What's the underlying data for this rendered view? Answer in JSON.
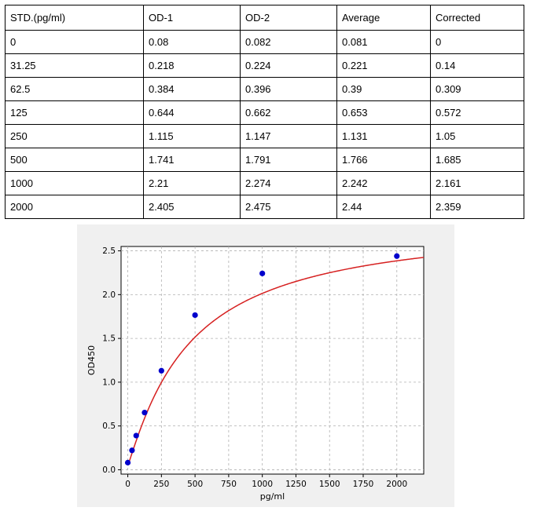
{
  "table": {
    "headers": [
      "STD.(pg/ml)",
      "OD-1",
      "OD-2",
      "Average",
      "Corrected"
    ],
    "rows": [
      [
        "0",
        "0.08",
        "0.082",
        "0.081",
        "0"
      ],
      [
        "31.25",
        "0.218",
        "0.224",
        "0.221",
        "0.14"
      ],
      [
        "62.5",
        "0.384",
        "0.396",
        "0.39",
        "0.309"
      ],
      [
        "125",
        "0.644",
        "0.662",
        "0.653",
        "0.572"
      ],
      [
        "250",
        "1.115",
        "1.147",
        "1.131",
        "1.05"
      ],
      [
        "500",
        "1.741",
        "1.791",
        "1.766",
        "1.685"
      ],
      [
        "1000",
        "2.21",
        "2.274",
        "2.242",
        "2.161"
      ],
      [
        "2000",
        "2.405",
        "2.475",
        "2.44",
        "2.359"
      ]
    ]
  },
  "chart_data": {
    "type": "scatter",
    "title": "",
    "xlabel": "pg/ml",
    "ylabel": "OD450",
    "xlim": [
      -50,
      2200
    ],
    "ylim": [
      -0.05,
      2.55
    ],
    "xticks": [
      0,
      250,
      500,
      750,
      1000,
      1250,
      1500,
      1750,
      2000
    ],
    "yticks": [
      0.0,
      0.5,
      1.0,
      1.5,
      2.0,
      2.5
    ],
    "xtick_labels": [
      "0",
      "250",
      "500",
      "750",
      "1000",
      "1250",
      "1500",
      "1750",
      "2000"
    ],
    "ytick_labels": [
      "0.0",
      "0.5",
      "1.0",
      "1.5",
      "2.0",
      "2.5"
    ],
    "grid": true,
    "points": {
      "x": [
        0,
        31.25,
        62.5,
        125,
        250,
        500,
        1000,
        2000
      ],
      "y": [
        0.081,
        0.221,
        0.39,
        0.653,
        1.131,
        1.766,
        2.242,
        2.44
      ],
      "color": "#0000cc"
    },
    "fit_curve": {
      "type": "4PL",
      "x_range": [
        0,
        2200
      ],
      "params": {
        "A": 0.05,
        "B": 1.1,
        "C": 460,
        "D": 2.85
      },
      "color": "#d62020"
    },
    "colors": {
      "background": "#f0f0f0",
      "plot_area": "#ffffff",
      "grid": "#b0b0b0"
    }
  }
}
